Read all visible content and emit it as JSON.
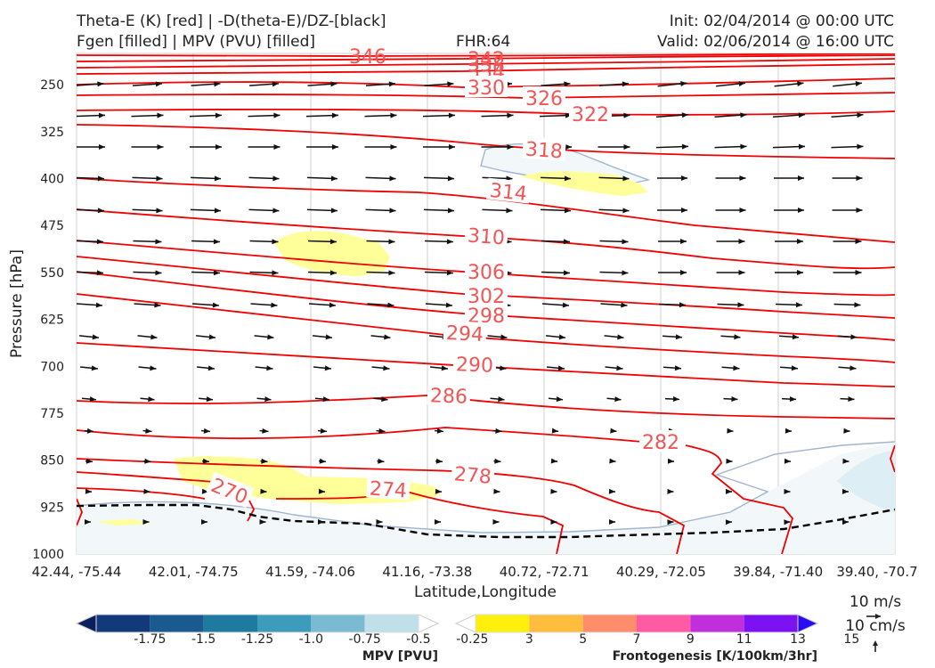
{
  "header": {
    "title_line1": "Theta-E (K) [red] | -D(theta-E)/DZ-[black]",
    "title_line2": "Fgen [filled] | MPV (PVU) [filled]",
    "fhr": "FHR:64",
    "init": "Init: 02/04/2014 @ 00:00 UTC",
    "valid": "Valid: 02/06/2014 @ 16:00 UTC"
  },
  "chart_data": {
    "type": "cross-section",
    "xlabel": "Latitude,Longitude",
    "ylabel": "Pressure [hPa]",
    "ylim": [
      1000,
      200
    ],
    "yscale": "linear-inverted",
    "y_ticks": [
      250,
      325,
      400,
      475,
      550,
      625,
      700,
      775,
      850,
      925,
      1000
    ],
    "x_tick_labels": [
      "42.44, -75.44",
      "42.01, -74.75",
      "41.59, -74.06",
      "41.16, -73.38",
      "40.72, -72.71",
      "40.29, -72.05",
      "39.84, -71.40",
      "39.40, -70.7"
    ],
    "theta_e_labels": [
      "346",
      "342",
      "338",
      "334",
      "330",
      "326",
      "322",
      "318",
      "314",
      "310",
      "306",
      "302",
      "298",
      "294",
      "290",
      "286",
      "282",
      "278",
      "274",
      "270"
    ],
    "mpv_colorbar": {
      "label": "MPV [PVU]",
      "ticks": [
        "-1.75",
        "-1.5",
        "-1.25",
        "-1.0",
        "-0.75",
        "-0.5",
        "-0.25"
      ],
      "colors": [
        "#0b1f5e",
        "#12397a",
        "#1a5a8f",
        "#1f7a9f",
        "#3d9bbb",
        "#7bbbd2",
        "#bfe0ea",
        "#ffffff"
      ]
    },
    "fgen_colorbar": {
      "label": "Frontogenesis [K/100km/3hr]",
      "ticks": [
        "3",
        "5",
        "7",
        "9",
        "11",
        "13",
        "15"
      ],
      "colors": [
        "#ffffff",
        "#ffef0c",
        "#ffbd3d",
        "#ff8c6b",
        "#ff5aa6",
        "#c12fdc",
        "#7c11f2",
        "#2a0cf4"
      ]
    },
    "vector_legend": {
      "horizontal": "10 m/s",
      "vertical": "10 cm/s"
    }
  }
}
